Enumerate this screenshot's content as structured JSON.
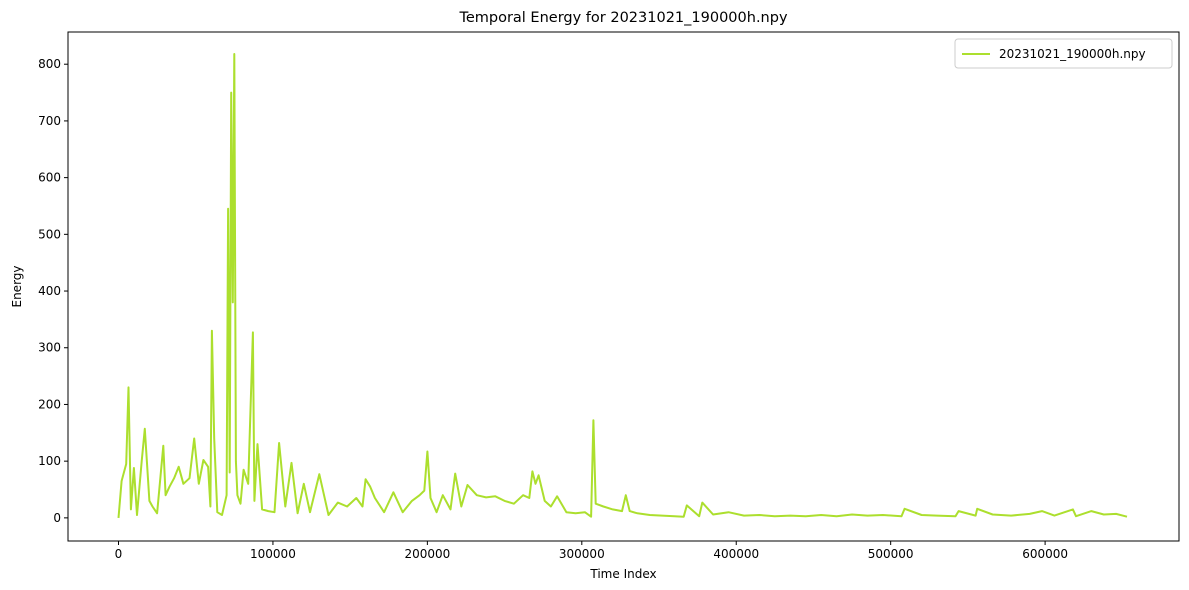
{
  "chart_data": {
    "type": "line",
    "title": "Temporal Energy for 20231021_190000h.npy",
    "xlabel": "Time Index",
    "ylabel": "Energy",
    "xlim": [
      -32700,
      686700
    ],
    "ylim": [
      -40.8,
      856.8
    ],
    "xticks": [
      0,
      100000,
      200000,
      300000,
      400000,
      500000,
      600000
    ],
    "xtick_labels": [
      "0",
      "100000",
      "200000",
      "300000",
      "400000",
      "500000",
      "600000"
    ],
    "yticks": [
      0,
      100,
      200,
      300,
      400,
      500,
      600,
      700,
      800
    ],
    "ytick_labels": [
      "0",
      "100",
      "200",
      "300",
      "400",
      "500",
      "600",
      "700",
      "800"
    ],
    "grid": false,
    "legend": "top-right",
    "series": [
      {
        "name": "20231021_190000h.npy",
        "color": "#acdf2e",
        "x": [
          0,
          2000,
          5000,
          6500,
          8000,
          10000,
          12000,
          15000,
          17000,
          20000,
          22000,
          25000,
          29000,
          30500,
          33000,
          36000,
          39000,
          42000,
          46000,
          49000,
          52000,
          55000,
          58000,
          59500,
          60500,
          62000,
          64000,
          67000,
          70000,
          71000,
          72000,
          73000,
          74000,
          75000,
          76000,
          77000,
          79000,
          81000,
          84000,
          87000,
          88000,
          90000,
          93000,
          97000,
          101000,
          104000,
          108000,
          112000,
          116000,
          120000,
          124000,
          130000,
          136000,
          142000,
          148000,
          154000,
          158000,
          160000,
          163000,
          166000,
          172000,
          178000,
          184000,
          190000,
          195000,
          198000,
          200000,
          202000,
          206000,
          210000,
          215000,
          218000,
          222000,
          226000,
          232000,
          238000,
          244000,
          250000,
          256000,
          262000,
          266000,
          268000,
          270000,
          272000,
          276000,
          280000,
          284000,
          290000,
          296000,
          302000,
          306000,
          307500,
          309000,
          314000,
          320000,
          326000,
          328500,
          331000,
          336000,
          344000,
          352000,
          360000,
          366000,
          368000,
          376000,
          378000,
          385000,
          395000,
          405000,
          415000,
          425000,
          435000,
          445000,
          455000,
          465000,
          475000,
          485000,
          495000,
          507000,
          509000,
          520000,
          530000,
          542000,
          544000,
          555000,
          556000,
          566000,
          578000,
          590000,
          598000,
          606000,
          618000,
          620000,
          630000,
          638000,
          646000,
          653000
        ],
        "y": [
          0,
          65,
          95,
          230,
          15,
          88,
          5,
          100,
          157,
          30,
          20,
          8,
          127,
          40,
          55,
          70,
          90,
          60,
          70,
          140,
          60,
          102,
          90,
          20,
          330,
          140,
          10,
          5,
          40,
          545,
          80,
          750,
          380,
          818,
          100,
          40,
          25,
          85,
          60,
          327,
          30,
          130,
          15,
          12,
          10,
          132,
          20,
          97,
          8,
          60,
          10,
          77,
          5,
          27,
          20,
          35,
          20,
          68,
          55,
          35,
          10,
          45,
          10,
          30,
          40,
          48,
          117,
          35,
          10,
          40,
          15,
          78,
          20,
          58,
          40,
          36,
          38,
          30,
          25,
          40,
          35,
          82,
          60,
          75,
          30,
          20,
          38,
          10,
          8,
          10,
          2,
          172,
          25,
          20,
          15,
          12,
          40,
          12,
          8,
          5,
          4,
          3,
          2,
          22,
          3,
          27,
          6,
          10,
          4,
          5,
          3,
          4,
          3,
          5,
          3,
          6,
          4,
          5,
          3,
          16,
          5,
          4,
          3,
          12,
          4,
          16,
          6,
          4,
          7,
          12,
          4,
          15,
          3,
          12,
          6,
          7,
          2
        ]
      }
    ]
  }
}
